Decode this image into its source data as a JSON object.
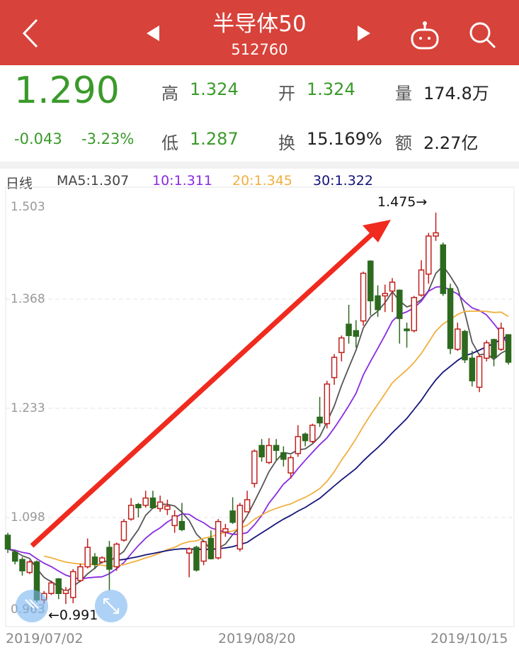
{
  "header": {
    "title": "半导体50",
    "code": "512760",
    "back_icon": "chevron-left-icon",
    "prev_icon": "triangle-left-icon",
    "next_icon": "triangle-right-icon",
    "robot_icon": "robot-icon",
    "search_icon": "search-icon",
    "bg_color": "#d7423a"
  },
  "quote": {
    "price": "1.290",
    "change": "-0.043",
    "change_pct": "-3.23%",
    "high_label": "高",
    "high": "1.324",
    "low_label": "低",
    "low": "1.287",
    "open_label": "开",
    "open": "1.324",
    "turnover_label": "换",
    "turnover": "15.169%",
    "volume_label": "量",
    "volume": "174.8万",
    "amount_label": "额",
    "amount": "2.27亿",
    "down_color": "#3a9a2a"
  },
  "legend": {
    "period": "日线",
    "ma5": "MA5:1.307",
    "ma10": "10:1.311",
    "ma20": "20:1.345",
    "ma30": "30:1.322"
  },
  "chart_data": {
    "type": "candlestick",
    "y_ticks": [
      "1.503",
      "1.368",
      "1.233",
      "1.098",
      "0.963"
    ],
    "ylim": [
      0.963,
      1.503
    ],
    "x_ticks": [
      "2019/07/02",
      "2019/08/20",
      "2019/10/15"
    ],
    "max_label": "1.475→",
    "min_label": "←0.991",
    "colors": {
      "up": "#c0201c",
      "down": "#2d6a1f",
      "ma5": "#555555",
      "ma10": "#8a2be2",
      "ma20": "#f0b040",
      "ma30": "#14147a",
      "arrow": "#f02a1e"
    },
    "ohlc": [
      [
        1.076,
        1.079,
        1.054,
        1.059
      ],
      [
        1.055,
        1.058,
        1.04,
        1.044
      ],
      [
        1.046,
        1.049,
        1.026,
        1.032
      ],
      [
        1.03,
        1.045,
        1.028,
        1.043
      ],
      [
        1.043,
        1.045,
        0.993,
        0.996
      ],
      [
        0.996,
        1.007,
        0.991,
        1.004
      ],
      [
        1.004,
        1.02,
        1.002,
        1.017
      ],
      [
        1.022,
        1.023,
        0.997,
        1.004
      ],
      [
        1.004,
        1.012,
        0.991,
        1.008
      ],
      [
        0.999,
        1.034,
        0.992,
        1.031
      ],
      [
        1.02,
        1.041,
        1.018,
        1.037
      ],
      [
        1.037,
        1.072,
        1.035,
        1.061
      ],
      [
        1.049,
        1.054,
        1.034,
        1.04
      ],
      [
        1.043,
        1.05,
        1.041,
        1.048
      ],
      [
        1.061,
        1.069,
        1.008,
        1.034
      ],
      [
        1.037,
        1.067,
        1.032,
        1.065
      ],
      [
        1.07,
        1.096,
        1.068,
        1.093
      ],
      [
        1.096,
        1.122,
        1.094,
        1.113
      ],
      [
        1.114,
        1.116,
        1.098,
        1.11
      ],
      [
        1.113,
        1.131,
        1.11,
        1.122
      ],
      [
        1.122,
        1.131,
        1.109,
        1.11
      ],
      [
        1.109,
        1.125,
        1.105,
        1.117
      ],
      [
        1.108,
        1.12,
        1.101,
        1.112
      ],
      [
        1.088,
        1.107,
        1.079,
        1.1
      ],
      [
        1.093,
        1.116,
        1.081,
        1.083
      ],
      [
        1.054,
        1.061,
        1.024,
        1.059
      ],
      [
        1.061,
        1.063,
        1.031,
        1.033
      ],
      [
        1.044,
        1.069,
        1.039,
        1.068
      ],
      [
        1.072,
        1.082,
        1.046,
        1.047
      ],
      [
        1.048,
        1.096,
        1.046,
        1.093
      ],
      [
        1.08,
        1.09,
        1.074,
        1.084
      ],
      [
        1.106,
        1.123,
        1.09,
        1.092
      ],
      [
        1.059,
        1.116,
        1.056,
        1.113
      ],
      [
        1.105,
        1.131,
        1.105,
        1.12
      ],
      [
        1.14,
        1.182,
        1.135,
        1.18
      ],
      [
        1.187,
        1.195,
        1.167,
        1.173
      ],
      [
        1.166,
        1.196,
        1.164,
        1.187
      ],
      [
        1.187,
        1.195,
        1.168,
        1.181
      ],
      [
        1.178,
        1.186,
        1.161,
        1.17
      ],
      [
        1.153,
        1.175,
        1.146,
        1.172
      ],
      [
        1.177,
        1.212,
        1.173,
        1.198
      ],
      [
        1.201,
        1.203,
        1.186,
        1.193
      ],
      [
        1.192,
        1.214,
        1.19,
        1.212
      ],
      [
        1.222,
        1.247,
        1.21,
        1.215
      ],
      [
        1.214,
        1.267,
        1.208,
        1.263
      ],
      [
        1.271,
        1.3,
        1.262,
        1.296
      ],
      [
        1.302,
        1.323,
        1.291,
        1.32
      ],
      [
        1.337,
        1.361,
        1.313,
        1.323
      ],
      [
        1.329,
        1.342,
        1.308,
        1.322
      ],
      [
        1.341,
        1.402,
        1.335,
        1.4
      ],
      [
        1.415,
        1.416,
        1.348,
        1.366
      ],
      [
        1.372,
        1.385,
        1.346,
        1.355
      ],
      [
        1.372,
        1.386,
        1.352,
        1.375
      ],
      [
        1.378,
        1.394,
        1.352,
        1.389
      ],
      [
        1.379,
        1.38,
        1.313,
        1.344
      ],
      [
        1.331,
        1.339,
        1.308,
        1.329
      ],
      [
        1.329,
        1.372,
        1.327,
        1.37
      ],
      [
        1.373,
        1.416,
        1.371,
        1.404
      ],
      [
        1.399,
        1.45,
        1.387,
        1.446
      ],
      [
        1.446,
        1.475,
        1.44,
        1.45
      ],
      [
        1.435,
        1.438,
        1.372,
        1.375
      ],
      [
        1.381,
        1.387,
        1.3,
        1.307
      ],
      [
        1.306,
        1.339,
        1.304,
        1.331
      ],
      [
        1.328,
        1.33,
        1.289,
        1.293
      ],
      [
        1.295,
        1.304,
        1.26,
        1.267
      ],
      [
        1.259,
        1.3,
        1.253,
        1.297
      ],
      [
        1.295,
        1.317,
        1.291,
        1.314
      ],
      [
        1.318,
        1.319,
        1.285,
        1.296
      ],
      [
        1.306,
        1.339,
        1.304,
        1.332
      ],
      [
        1.324,
        1.324,
        1.287,
        1.29
      ]
    ]
  }
}
